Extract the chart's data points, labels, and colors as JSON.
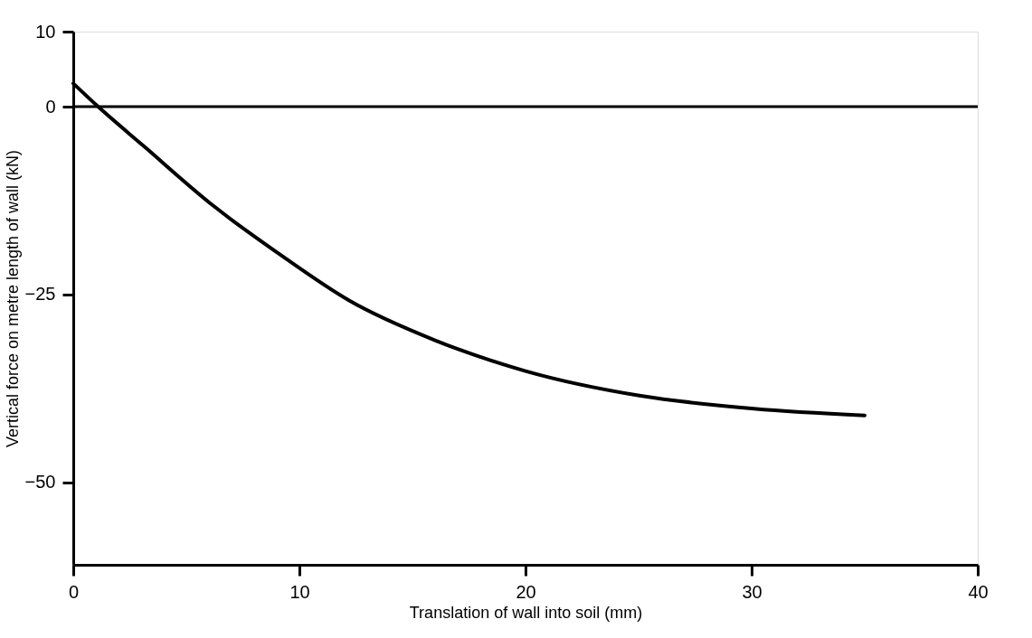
{
  "chart_data": {
    "type": "line",
    "xlabel": "Translation of wall into soil (mm)",
    "ylabel": "Vertical force on metre length of wall (kN)",
    "x": [
      0,
      1.1,
      3.1,
      6.2,
      9.2,
      12.2,
      16,
      20,
      25.1,
      30.1,
      35
    ],
    "series": [
      {
        "color": "#000000",
        "values": [
          3.1,
          0,
          -5.2,
          -13.2,
          -19.8,
          -25.8,
          -31.1,
          -35.2,
          -38.5,
          -40.2,
          -41.1
        ]
      }
    ],
    "xlim": [
      0,
      40
    ],
    "xticks": [
      0,
      10,
      20,
      30,
      40
    ],
    "ylim": [
      -61,
      10
    ],
    "yticks": [
      -50,
      -25,
      0,
      10
    ],
    "ref_lines": [
      {
        "axis": "y",
        "value": 0,
        "color": "#000000"
      }
    ],
    "grid": false,
    "legend": false,
    "marker": "none",
    "line_style": "solid"
  }
}
